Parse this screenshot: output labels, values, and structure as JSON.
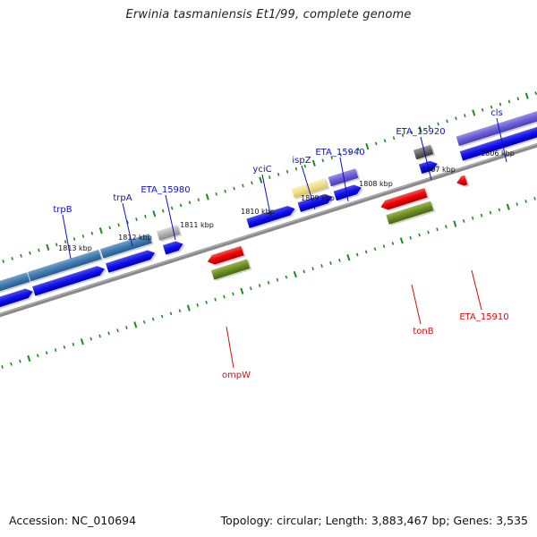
{
  "title": "Erwinia tasmaniensis Et1/99, complete genome",
  "footer": {
    "accession": "Accession: NC_010694",
    "topology": "Topology: circular; Length: 3,883,467 bp; Genes: 3,535"
  },
  "colors": {
    "tick": "#1e8a1e",
    "backbone": "#8a8a8a",
    "forward_label": "#1010c0",
    "reverse_label": "#cc1010",
    "kbp_label": "#111111"
  },
  "kbp_labels": [
    "1806 kbp",
    "1807 kbp",
    "1808 kbp",
    "1809 kbp",
    "1810 kbp",
    "1811 kbp",
    "1812 kbp",
    "1813 kbp"
  ],
  "forward_genes": [
    "cls",
    "ETA_15920",
    "ETA_15940",
    "ispZ",
    "yciC",
    "ETA_15980",
    "trpA",
    "trpB"
  ],
  "reverse_genes": [
    "ETA_15910",
    "tonB",
    "ompW"
  ]
}
